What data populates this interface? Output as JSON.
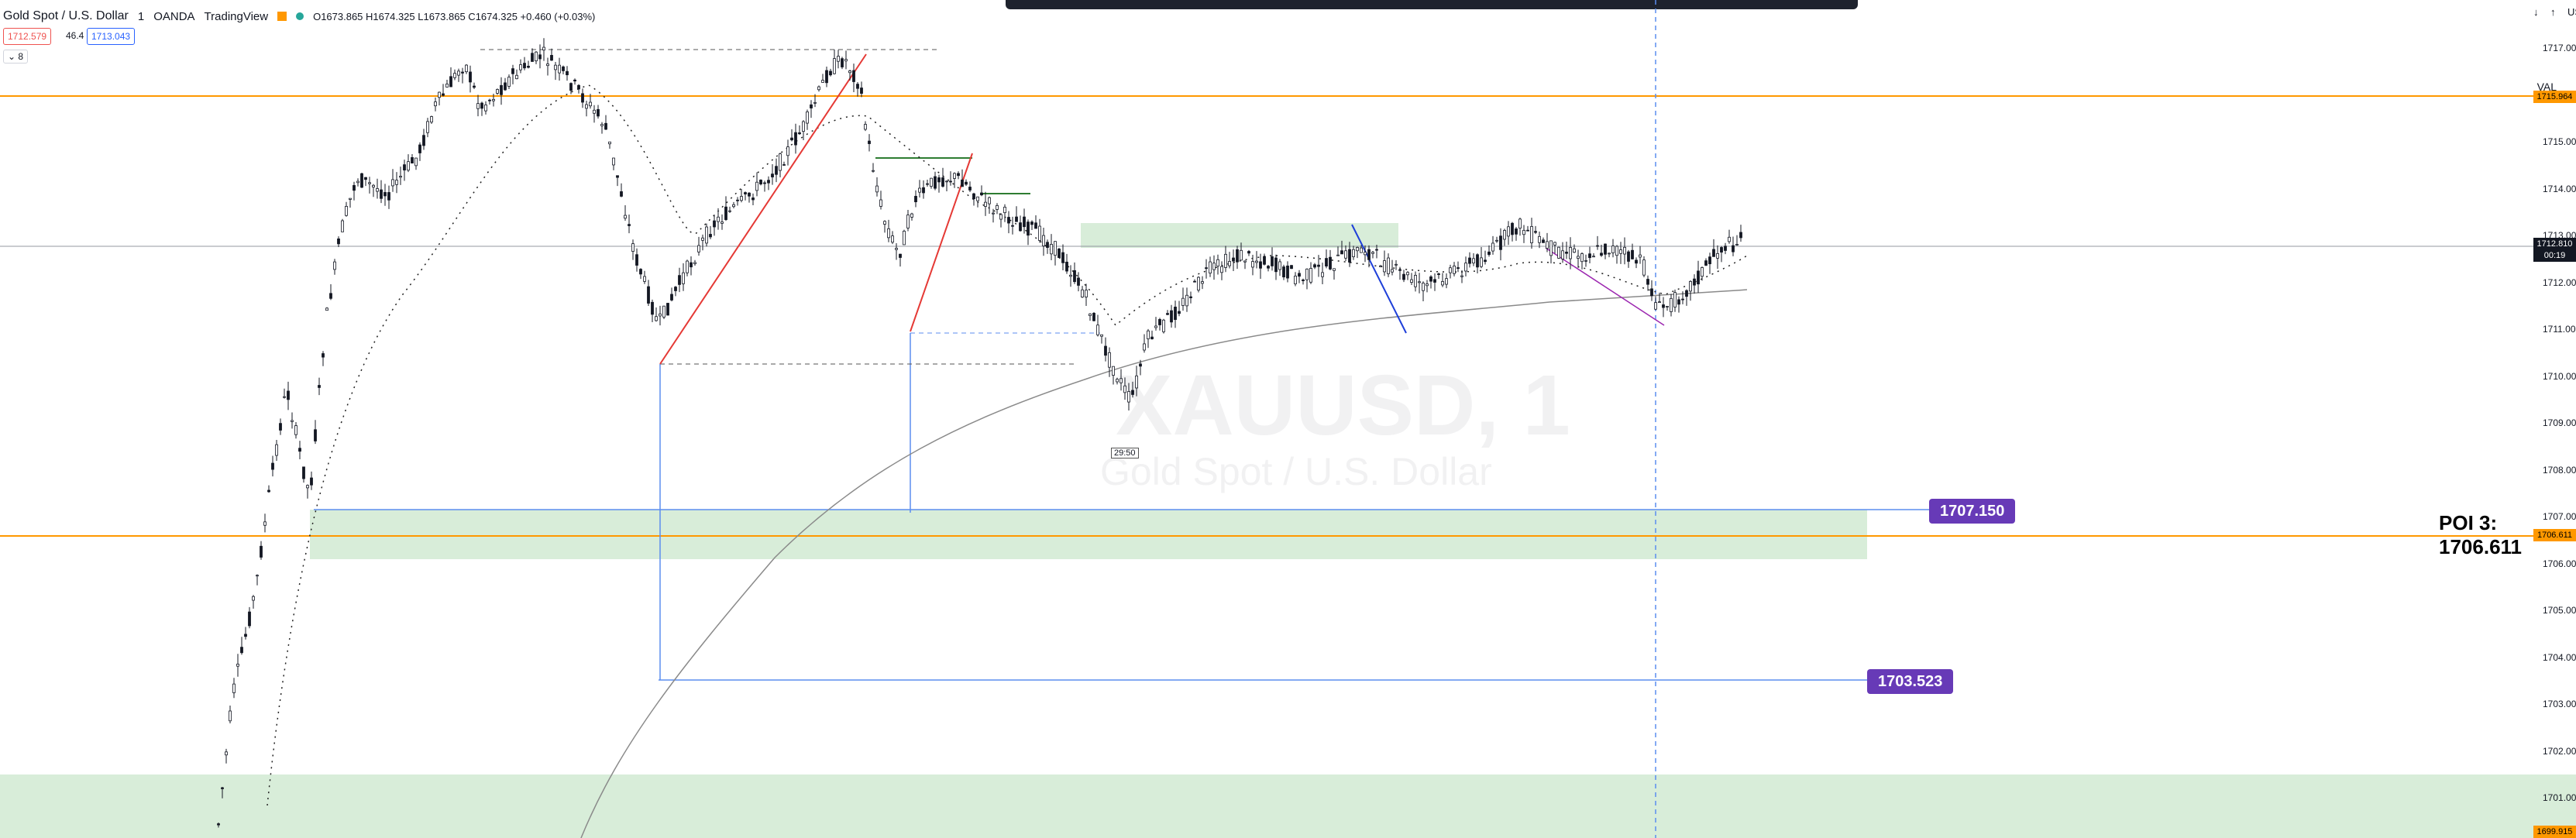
{
  "header": {
    "title": "Gold Spot / U.S. Dollar",
    "interval": "1",
    "broker": "OANDA",
    "platform": "TradingView",
    "ohlc": "O1673.865 H1674.325 L1673.865 C1674.325 +0.460 (+0.03%)",
    "sell_price": "1712.579",
    "spread": "46.4",
    "buy_price": "1713.043",
    "collapse_count": "8",
    "currency": "USD"
  },
  "watermark": {
    "symbol": "XAUUSD, 1",
    "description": "Gold Spot / U.S. Dollar"
  },
  "annotations": {
    "val_label": "VAL",
    "poi_label": "POI 3: 1706.611",
    "target_upper": "1707.150",
    "target_lower": "1703.523",
    "bar_timer": "29:50"
  },
  "price_axis": {
    "ticks": [
      "1717.000",
      "1716.000",
      "1715.000",
      "1714.000",
      "1713.000",
      "1712.000",
      "1711.000",
      "1710.000",
      "1709.000",
      "1708.000",
      "1707.000",
      "1706.000",
      "1705.000",
      "1704.000",
      "1703.000",
      "1702.000",
      "1701.000"
    ],
    "val_price": "1715.964",
    "current_price": "1712.810",
    "countdown": "00:19",
    "poi_price": "1706.611",
    "bottom_price": "1699.915"
  },
  "colors": {
    "accent_orange": "#ff9800",
    "zone_green": "#c8e6c9",
    "line_blue": "#5b8def",
    "badge_purple": "#673ab7",
    "up": "#131722",
    "down": "#131722"
  }
}
